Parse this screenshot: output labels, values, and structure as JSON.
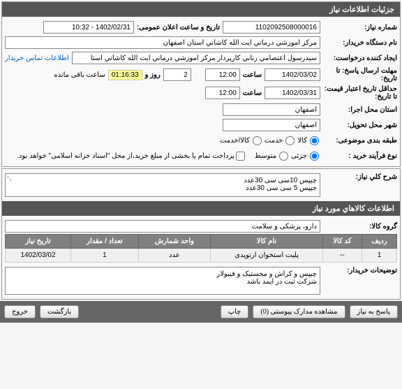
{
  "panel1": {
    "title": "جزئیات اطلاعات نیاز",
    "need_no_label": "شماره نیاز:",
    "need_no": "1102092508000016",
    "pub_date_label": "تاریخ و ساعت اعلان عمومی:",
    "pub_date": "1402/02/31 - 10:32",
    "buyer_org_label": "نام دستگاه خریدار:",
    "buyer_org": "مرکز اموزشي درماني ايت الله کاشاني استان اصفهان",
    "creator_label": "ایجاد کننده درخواست:",
    "creator": "سیدرسول اعتصامي رناني کارپرداز مرکز اموزشي درماني ايت الله کاشاني استا",
    "contact_link": "اطلاعات تماس خریدار",
    "send_deadline_label": "مهلت ارسال پاسخ: تا تاریخ:",
    "send_date": "1402/03/02",
    "time_label": "ساعت",
    "send_time": "12:00",
    "days_sep": "روز و",
    "days": "2",
    "countdown": "01:16:33",
    "remain": "ساعت باقی مانده",
    "validity_label": "حداقل تاریخ اعتبار قیمت: تا تاریخ:",
    "validity_date": "1402/03/31",
    "validity_time": "12:00",
    "city_exec_label": "استان محل اجرا:",
    "city_exec": "اصفهان",
    "city_deliv_label": "شهر محل تحویل:",
    "city_deliv": "اصفهان",
    "group_label": "طبقه بندی موضوعی:",
    "radios": {
      "goods": "کالا",
      "service": "خدمت",
      "both": "کالا/خدمت"
    },
    "buy_type_label": "نوع فرآیند خرید :",
    "buy_radios": {
      "partial": "جزئی",
      "medium": "متوسط"
    },
    "pay_check": "پرداخت تمام یا بخشی از مبلغ خرید،از محل \"اسناد خزانه اسلامی\" خواهد بود."
  },
  "panel2": {
    "main_desc_label": "شرح کلي نیاز:",
    "main_desc_line1": "چیپس 10سی سی 30عدد",
    "main_desc_line2": "جیپس 5 سی سی 30عدد",
    "items_header": "اطلاعات کالاهاي مورد نیاز",
    "goods_group_label": "گروه کالا:",
    "goods_group": "دارو، پزشکی و سلامت",
    "table": {
      "headers": [
        "ردیف",
        "کد کالا",
        "نام کالا",
        "واحد شمارش",
        "تعداد / مقدار",
        "تاریخ نیاز"
      ],
      "rows": [
        [
          "1",
          "--",
          "پلیت استخوان ارتوپدی",
          "عدد",
          "1",
          "1402/03/02"
        ]
      ]
    },
    "buyer_notes_label": "توضیحات خریدار:",
    "buyer_notes_line1": "چیپس و کراش و مجستیک و فیبولار",
    "buyer_notes_line2": "شرکت ثبت در ایمد باشد"
  },
  "footer": {
    "respond": "پاسخ به نیاز",
    "attachments": "مشاهده مدارک پیوستی (0)",
    "print": "چاپ",
    "back": "بازگشت",
    "exit": "خروج"
  }
}
